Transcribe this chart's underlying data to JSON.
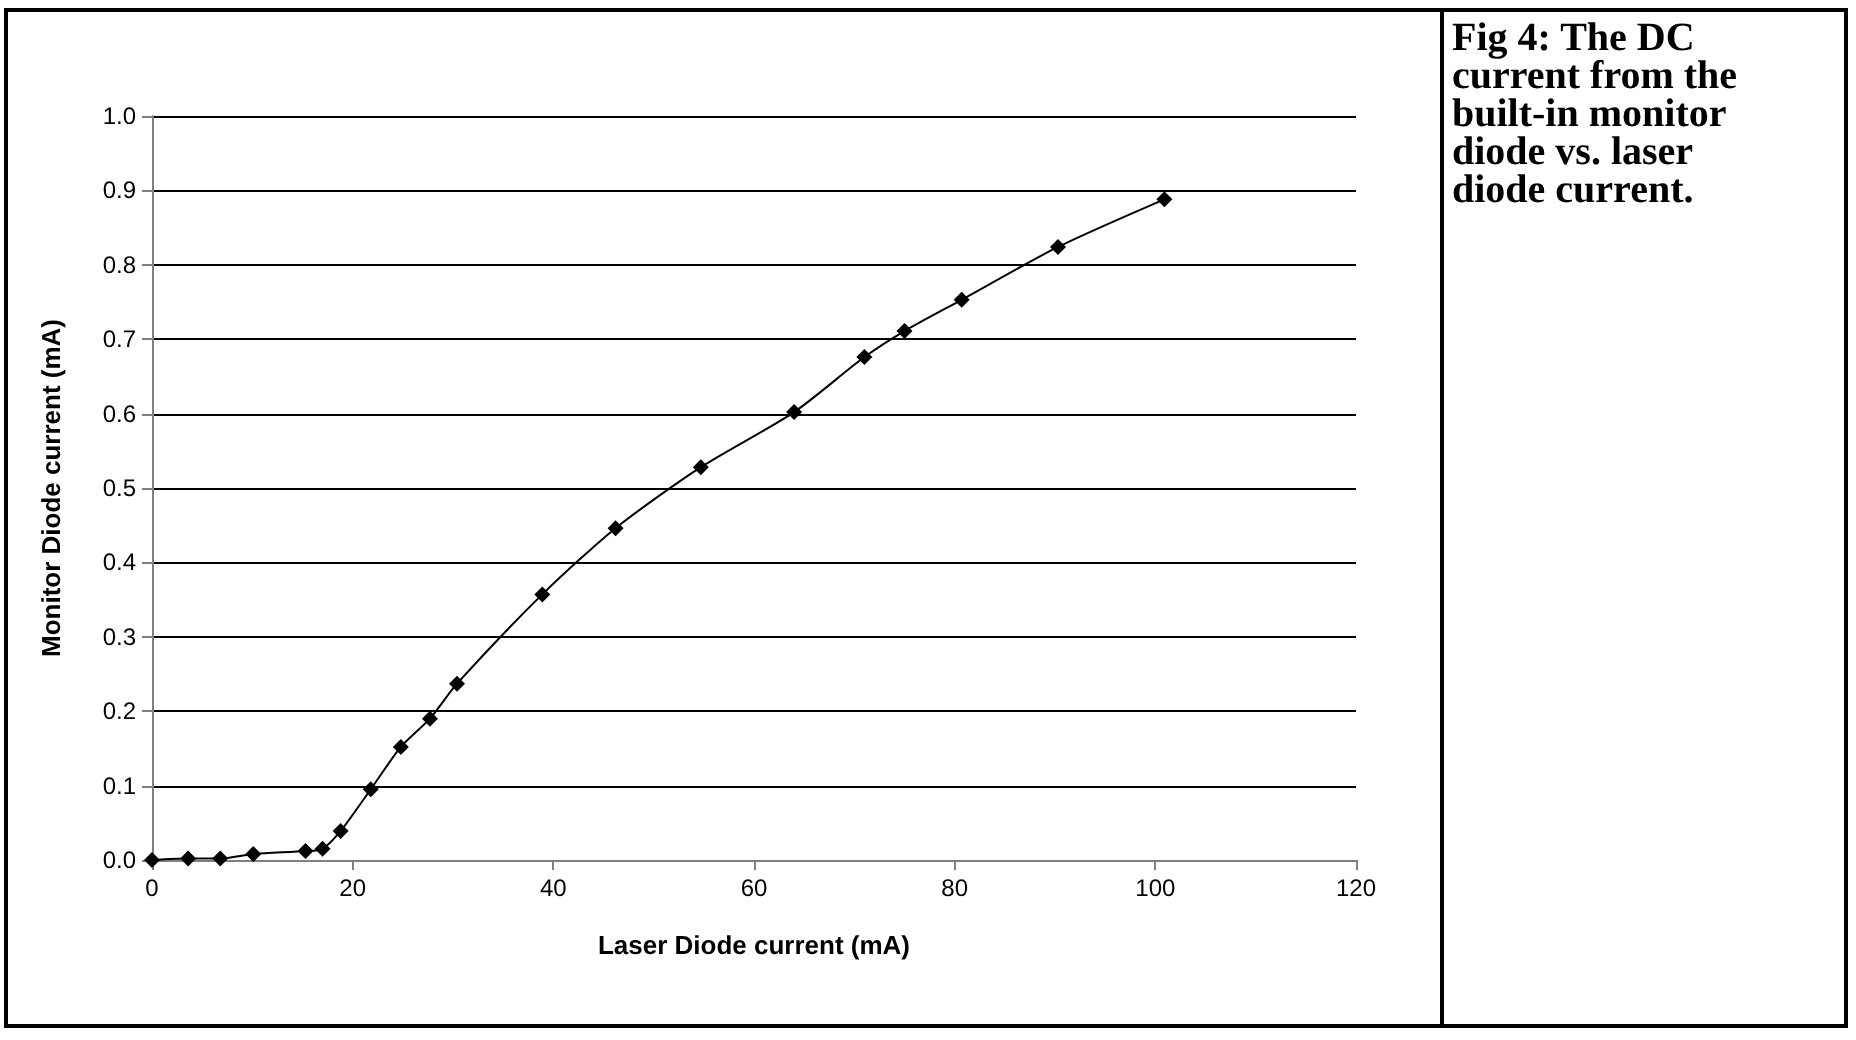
{
  "chart_data": {
    "type": "line",
    "title": "Fig 4: The DC current from the built-in monitor diode vs. laser diode current.",
    "xlabel": "Laser Diode current (mA)",
    "ylabel": "Monitor Diode current (mA)",
    "series": [
      {
        "color": "#000000",
        "x": [
          0,
          3.6,
          6.8,
          10.1,
          15.3,
          17.0,
          18.8,
          21.8,
          24.8,
          27.7,
          30.4,
          38.9,
          46.2,
          54.7,
          64.0,
          71.0,
          75.0,
          80.7,
          90.3,
          100.9
        ],
        "values": [
          0,
          0.002,
          0.002,
          0.008,
          0.012,
          0.015,
          0.039,
          0.095,
          0.152,
          0.19,
          0.237,
          0.357,
          0.446,
          0.528,
          0.602,
          0.676,
          0.711,
          0.753,
          0.824,
          0.888
        ]
      }
    ],
    "xlim": [
      0,
      120
    ],
    "xticks": [
      0,
      20,
      40,
      60,
      80,
      100,
      120
    ],
    "ylim": [
      0,
      1
    ],
    "yticks": [
      {
        "value": 0,
        "label": "0.0"
      },
      {
        "value": 0.1,
        "label": "0.1"
      },
      {
        "value": 0.2,
        "label": "0.2"
      },
      {
        "value": 0.3,
        "label": "0.3"
      },
      {
        "value": 0.4,
        "label": "0.4"
      },
      {
        "value": 0.5,
        "label": "0.5"
      },
      {
        "value": 0.6,
        "label": "0.6"
      },
      {
        "value": 0.7,
        "label": "0.7"
      },
      {
        "value": 0.8,
        "label": "0.8"
      },
      {
        "value": 0.9,
        "label": "0.9"
      },
      {
        "value": 1,
        "label": "1.0"
      }
    ],
    "grid": "y",
    "marker": "diamond",
    "line_style": "solid"
  }
}
